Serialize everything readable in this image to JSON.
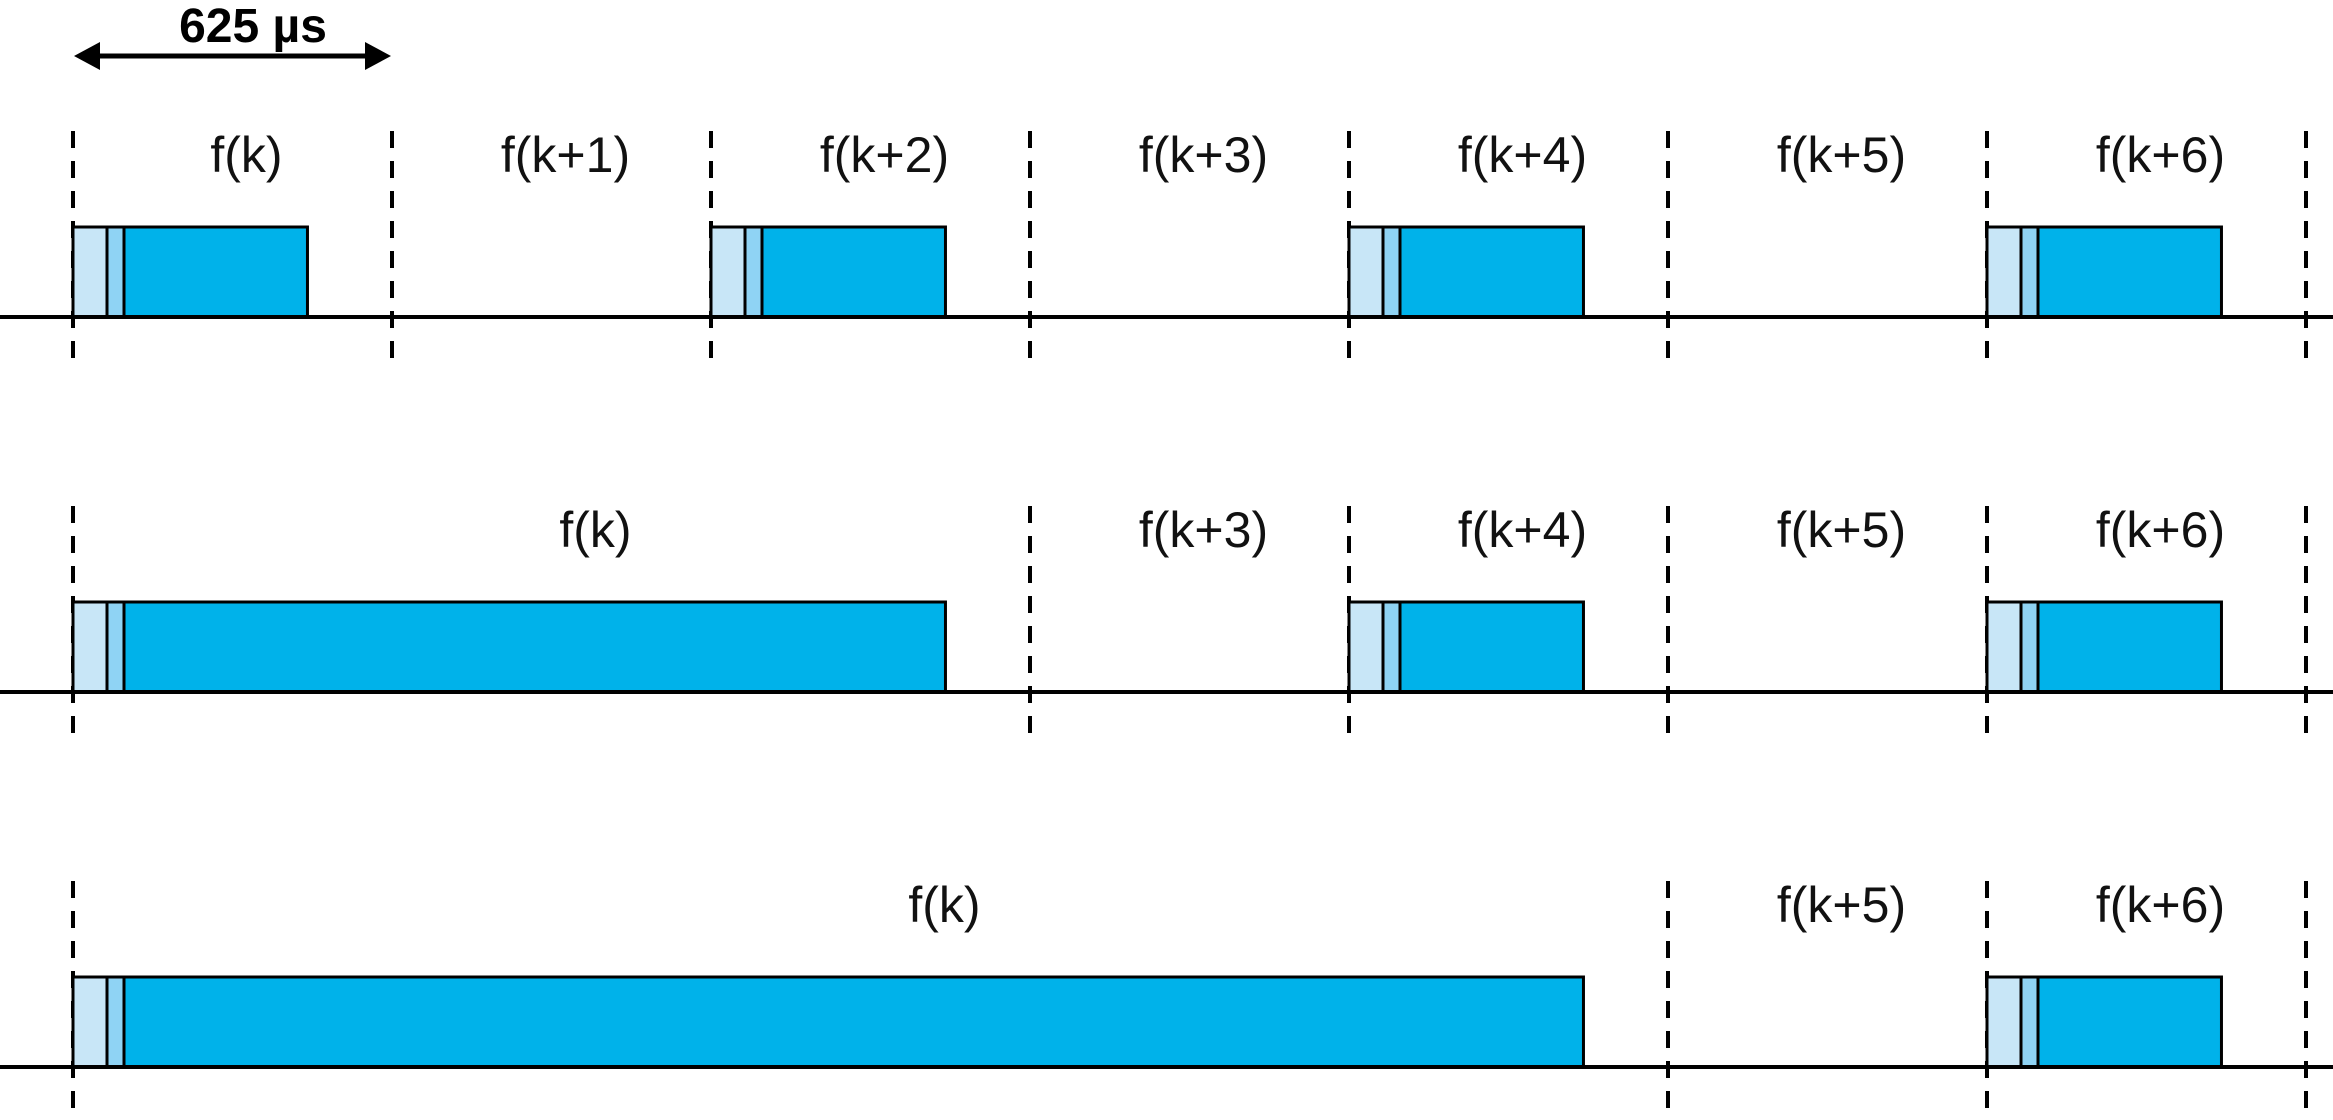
{
  "duration_label": "625 µs",
  "colors": {
    "header_light": "#c8e6f7",
    "header_mid": "#8fd3f4",
    "payload": "#00b2ea",
    "line": "#000000"
  },
  "slot_count": 7,
  "rows": [
    {
      "slots": [
        {
          "label": "f(k)",
          "start": 0,
          "span": 1
        },
        {
          "label": "f(k+1)",
          "start": 1,
          "span": 1
        },
        {
          "label": "f(k+2)",
          "start": 2,
          "span": 1
        },
        {
          "label": "f(k+3)",
          "start": 3,
          "span": 1
        },
        {
          "label": "f(k+4)",
          "start": 4,
          "span": 1
        },
        {
          "label": "f(k+5)",
          "start": 5,
          "span": 1
        },
        {
          "label": "f(k+6)",
          "start": 6,
          "span": 1
        }
      ],
      "packets": [
        {
          "start": 0,
          "slots": 1
        },
        {
          "start": 2,
          "slots": 1
        },
        {
          "start": 4,
          "slots": 1
        },
        {
          "start": 6,
          "slots": 1
        }
      ]
    },
    {
      "slots": [
        {
          "label": "f(k)",
          "start": 0,
          "span": 3
        },
        {
          "label": "f(k+3)",
          "start": 3,
          "span": 1
        },
        {
          "label": "f(k+4)",
          "start": 4,
          "span": 1
        },
        {
          "label": "f(k+5)",
          "start": 5,
          "span": 1
        },
        {
          "label": "f(k+6)",
          "start": 6,
          "span": 1
        }
      ],
      "packets": [
        {
          "start": 0,
          "slots": 3
        },
        {
          "start": 4,
          "slots": 1
        },
        {
          "start": 6,
          "slots": 1
        }
      ]
    },
    {
      "slots": [
        {
          "label": "f(k)",
          "start": 0,
          "span": 5
        },
        {
          "label": "f(k+5)",
          "start": 5,
          "span": 1
        },
        {
          "label": "f(k+6)",
          "start": 6,
          "span": 1
        }
      ],
      "packets": [
        {
          "start": 0,
          "slots": 5
        },
        {
          "start": 6,
          "slots": 1
        }
      ]
    }
  ]
}
